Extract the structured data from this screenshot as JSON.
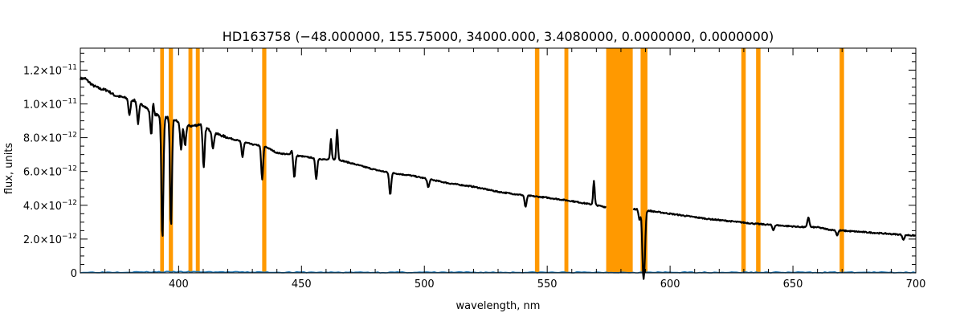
{
  "chart_data": {
    "type": "line",
    "title": "HD163758    (−48.000000, 155.75000, 34000.000, 3.4080000, 0.0000000, 0.0000000)",
    "xlabel": "wavelength, nm",
    "ylabel": "flux, units",
    "xlim": [
      360,
      700
    ],
    "ylim": [
      0,
      1.33e-11
    ],
    "grid": false,
    "x_ticks": [
      {
        "value": 400,
        "label": "400"
      },
      {
        "value": 450,
        "label": "450"
      },
      {
        "value": 500,
        "label": "500"
      },
      {
        "value": 550,
        "label": "550"
      },
      {
        "value": 600,
        "label": "600"
      },
      {
        "value": 650,
        "label": "650"
      },
      {
        "value": 700,
        "label": "700"
      }
    ],
    "y_ticks": [
      {
        "value": 0,
        "mant": "0",
        "exp": ""
      },
      {
        "value": 2e-12,
        "mant": "2.0×10",
        "exp": "−12"
      },
      {
        "value": 4e-12,
        "mant": "4.0×10",
        "exp": "−12"
      },
      {
        "value": 6e-12,
        "mant": "6.0×10",
        "exp": "−12"
      },
      {
        "value": 8e-12,
        "mant": "8.0×10",
        "exp": "−12"
      },
      {
        "value": 1e-11,
        "mant": "1.0×10",
        "exp": "−11"
      },
      {
        "value": 1.2e-11,
        "mant": "1.2×10",
        "exp": "−11"
      }
    ],
    "masked_bands_nm": [
      [
        392.5,
        394.0
      ],
      [
        396.0,
        397.7
      ],
      [
        404.0,
        405.6
      ],
      [
        407.0,
        408.6
      ],
      [
        434.0,
        435.7
      ],
      [
        545.0,
        546.8
      ],
      [
        557.0,
        558.6
      ],
      [
        574.0,
        584.8
      ],
      [
        588.0,
        590.8
      ],
      [
        629.0,
        630.8
      ],
      [
        635.0,
        636.8
      ],
      [
        669.0,
        670.8
      ]
    ],
    "colors": {
      "mask": "#ff9900",
      "flux": "#000000",
      "error": "#1f77b4",
      "axis": "#000000"
    },
    "series": [
      {
        "values_x": [
          360,
          362,
          365,
          368,
          371,
          374,
          377,
          380,
          382,
          384,
          386,
          388,
          390,
          392,
          394,
          396,
          398,
          400,
          403,
          406,
          409,
          412,
          416,
          420,
          425,
          430,
          435,
          440,
          445,
          450,
          455,
          460,
          465,
          470,
          475,
          480,
          485,
          490,
          495,
          500,
          510,
          520,
          530,
          540,
          550,
          560,
          570,
          573.5,
          588,
          595,
          605,
          615,
          625,
          635,
          645,
          650,
          655,
          660,
          665,
          670,
          680,
          690,
          695,
          700
        ],
        "values_y": [
          1.15e-11,
          1.15e-11,
          1.11e-11,
          1.09e-11,
          1.08e-11,
          1.05e-11,
          1.04e-11,
          1.03e-11,
          1.02e-11,
          1e-11,
          9.9e-12,
          9.6e-12,
          9.4e-12,
          9.3e-12,
          9.2e-12,
          9.2e-12,
          9.1e-12,
          8.9e-12,
          8.7e-12,
          8.7e-12,
          8.8e-12,
          8.5e-12,
          8.2e-12,
          8e-12,
          7.8e-12,
          7.6e-12,
          7.5e-12,
          7.1e-12,
          7e-12,
          6.9e-12,
          6.8e-12,
          6.7e-12,
          6.7e-12,
          6.5e-12,
          6.3e-12,
          6.1e-12,
          5.95e-12,
          5.85e-12,
          5.75e-12,
          5.6e-12,
          5.3e-12,
          5.1e-12,
          4.8e-12,
          4.6e-12,
          4.45e-12,
          4.25e-12,
          4e-12,
          3.9e-12,
          3.75e-12,
          3.6e-12,
          3.4e-12,
          3.2e-12,
          3.05e-12,
          2.9e-12,
          2.8e-12,
          2.75e-12,
          2.7e-12,
          2.7e-12,
          2.55e-12,
          2.5e-12,
          2.4e-12,
          2.3e-12,
          2.25e-12,
          2.2e-12
        ]
      },
      {
        "values_x": [
          360,
          400,
          450,
          500,
          550,
          600,
          650,
          700
        ],
        "values_y": [
          0,
          1e-13,
          0,
          0,
          0,
          0,
          0,
          0
        ]
      }
    ],
    "lines": [
      {
        "x": 380.0,
        "depth": 1e-12
      },
      {
        "x": 383.5,
        "depth": 1.2e-12
      },
      {
        "x": 388.9,
        "depth": 1.5e-12
      },
      {
        "x": 393.4,
        "depth": 7.3e-12
      },
      {
        "x": 396.9,
        "depth": 6.5e-12
      },
      {
        "x": 401.0,
        "depth": 1.5e-12
      },
      {
        "x": 402.6,
        "depth": 1.2e-12
      },
      {
        "x": 410.2,
        "depth": 2.5e-12
      },
      {
        "x": 414.0,
        "depth": 1e-12
      },
      {
        "x": 426.0,
        "depth": 9e-13
      },
      {
        "x": 434.0,
        "depth": 2e-12
      },
      {
        "x": 447.1,
        "depth": 1.3e-12
      },
      {
        "x": 456.0,
        "depth": 1.2e-12
      },
      {
        "x": 486.1,
        "depth": 1.3e-12
      },
      {
        "x": 501.6,
        "depth": 5e-13
      },
      {
        "x": 541.2,
        "depth": 7e-13
      },
      {
        "x": 587.6,
        "depth": 6e-13
      },
      {
        "x": 589.0,
        "depth": 3e-12
      },
      {
        "x": 589.6,
        "depth": 2.5e-12
      },
      {
        "x": 656.3,
        "depth": -6e-13
      },
      {
        "x": 642.0,
        "depth": 3e-13
      },
      {
        "x": 668.0,
        "depth": 3e-13
      },
      {
        "x": 695.0,
        "depth": 3e-13
      }
    ],
    "emission": [
      {
        "x": 389.5,
        "height": 9e-13
      },
      {
        "x": 462.0,
        "height": 1.2e-12
      },
      {
        "x": 464.5,
        "height": 1.8e-12
      },
      {
        "x": 569.0,
        "height": 1.4e-12
      },
      {
        "x": 446.0,
        "height": 3e-13
      }
    ]
  }
}
